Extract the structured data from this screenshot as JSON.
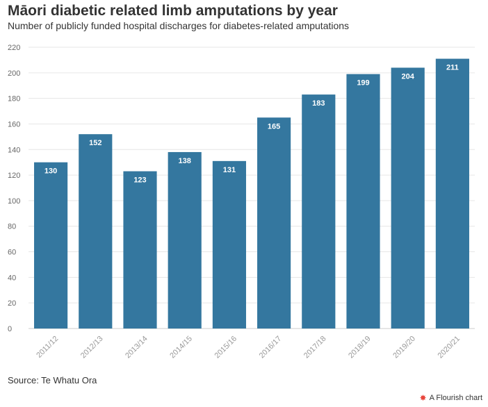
{
  "title": "Māori diabetic related limb amputations by year",
  "subtitle": "Number of publicly funded hospital discharges for diabetes-related amputations",
  "source": "Source: Te Whatu Ora",
  "credit": "A Flourish chart",
  "credit_icon": "flourish-star-icon",
  "colors": {
    "bar": "#34779f",
    "grid": "#e6e6e6",
    "text": "#333333",
    "credit_accent": "#e8453c"
  },
  "chart_data": {
    "type": "bar",
    "title": "Māori diabetic related limb amputations by year",
    "subtitle": "Number of publicly funded hospital discharges for diabetes-related amputations",
    "xlabel": "",
    "ylabel": "",
    "categories": [
      "2011/12",
      "2012/13",
      "2013/14",
      "2014/15",
      "2015/16",
      "2016/17",
      "2017/18",
      "2018/19",
      "2019/20",
      "2020/21"
    ],
    "values": [
      130,
      152,
      123,
      138,
      131,
      165,
      183,
      199,
      204,
      211
    ],
    "ylim": [
      0,
      220
    ],
    "yticks": [
      0,
      20,
      40,
      60,
      80,
      100,
      120,
      140,
      160,
      180,
      200,
      220
    ],
    "grid": true,
    "data_labels": true,
    "legend": "none"
  }
}
